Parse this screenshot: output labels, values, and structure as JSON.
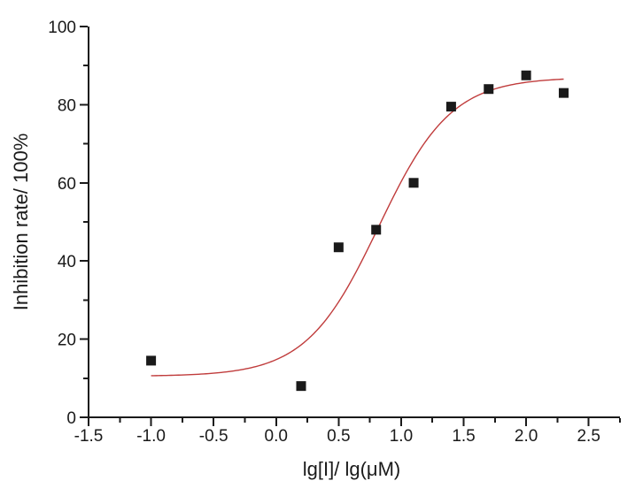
{
  "chart_data": {
    "type": "scatter",
    "title": "",
    "xlabel": "lg[I]/ lg(μM)",
    "ylabel": "Inhibition rate/ 100%",
    "xlim": [
      -1.5,
      2.75
    ],
    "ylim": [
      0,
      100
    ],
    "grid": false,
    "legend": null,
    "x_major_ticks": [
      -1.5,
      -1.0,
      -0.5,
      0.0,
      0.5,
      1.0,
      1.5,
      2.0,
      2.5
    ],
    "x_tick_labels": [
      "-1.5",
      "-1.0",
      "-0.5",
      "0.0",
      "0.5",
      "1.0",
      "1.5",
      "2.0",
      "2.5"
    ],
    "x_minor_step": 0.25,
    "y_major_ticks": [
      0,
      20,
      40,
      60,
      80,
      100
    ],
    "y_tick_labels": [
      "0",
      "20",
      "40",
      "60",
      "80",
      "100"
    ],
    "y_minor_step": 10,
    "series": [
      {
        "name": "inhibition-data-points",
        "type": "scatter",
        "marker": "square",
        "marker_size": 11,
        "color": "#1a1a1a",
        "points": [
          [
            -1.0,
            14.5
          ],
          [
            0.2,
            8
          ],
          [
            0.5,
            43.5
          ],
          [
            0.8,
            48
          ],
          [
            1.1,
            60
          ],
          [
            1.4,
            79.5
          ],
          [
            1.7,
            84
          ],
          [
            2.0,
            87.5
          ],
          [
            2.3,
            83
          ]
        ]
      },
      {
        "name": "sigmoidal-fit-curve",
        "type": "line",
        "color": "#c03c3c",
        "stroke_width": 1.4,
        "fit": {
          "model": "logistic",
          "bottom": 10.5,
          "top": 87,
          "log_ec50": 0.82,
          "hill_slope": 1.5,
          "x_start": -1.0,
          "x_end": 2.31
        }
      }
    ],
    "colors": {
      "background": "#ffffff",
      "axis": "#1a1a1a",
      "text": "#1a1a1a",
      "marker": "#1a1a1a",
      "curve": "#c03c3c"
    }
  }
}
